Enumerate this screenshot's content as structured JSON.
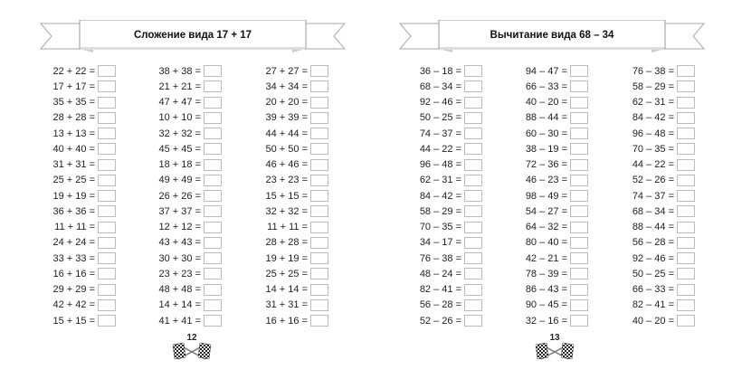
{
  "pages": [
    {
      "title": "Сложение вида  17 + 17",
      "page_number": "12",
      "columns": [
        [
          "22 + 22 =",
          "17 + 17 =",
          "35 + 35 =",
          "28 + 28 =",
          "13 + 13 =",
          "40 + 40 =",
          "31 + 31 =",
          "25 + 25 =",
          "19 + 19 =",
          "36 + 36 =",
          "11 + 11 =",
          "24 + 24 =",
          "33 + 33 =",
          "16 + 16 =",
          "29 + 29 =",
          "42 + 42 =",
          "15 + 15 ="
        ],
        [
          "38 + 38 =",
          "21 + 21 =",
          "47 + 47 =",
          "10 + 10 =",
          "32 + 32 =",
          "45 + 45 =",
          "18 + 18 =",
          "49 + 49 =",
          "26 + 26 =",
          "37 + 37 =",
          "12 + 12 =",
          "43 + 43 =",
          "30 + 30 =",
          "23 + 23 =",
          "48 + 48 =",
          "14 + 14 =",
          "41 + 41 ="
        ],
        [
          "27 + 27 =",
          "34 + 34 =",
          "20 + 20 =",
          "39 + 39 =",
          "44 + 44 =",
          "50 + 50 =",
          "46 + 46 =",
          "23 + 23 =",
          "15 + 15 =",
          "32 + 32 =",
          "11 + 11 =",
          "28 + 28 =",
          "19 + 19 =",
          "25 + 25 =",
          "14 + 14 =",
          "31 + 31 =",
          "16 + 16 ="
        ]
      ]
    },
    {
      "title": "Вычитание вида  68 – 34",
      "page_number": "13",
      "columns": [
        [
          "36 – 18 =",
          "68 – 34 =",
          "92 – 46 =",
          "50 – 25 =",
          "74 – 37 =",
          "44 – 22 =",
          "96 – 48 =",
          "62 – 31 =",
          "84 – 42 =",
          "58 – 29 =",
          "70 – 35 =",
          "34 – 17 =",
          "76 – 38 =",
          "48 – 24 =",
          "82 – 41 =",
          "56 – 28 =",
          "52 – 26 ="
        ],
        [
          "94 – 47 =",
          "66 – 33 =",
          "40 – 20 =",
          "88 – 44 =",
          "60 – 30 =",
          "38 – 19 =",
          "72 – 36 =",
          "46 – 23 =",
          "98 – 49 =",
          "54 – 27 =",
          "64 – 32 =",
          "80 – 40 =",
          "42 – 21 =",
          "78 – 39 =",
          "86 – 43 =",
          "90 – 45 =",
          "32 – 16 ="
        ],
        [
          "76 – 38 =",
          "58 – 29 =",
          "62 – 31 =",
          "84 – 42 =",
          "96 – 48 =",
          "70 – 35 =",
          "44 – 22 =",
          "52 – 26 =",
          "74 – 37 =",
          "68 – 34 =",
          "88 – 44 =",
          "56 – 28 =",
          "92 – 46 =",
          "50 – 25 =",
          "66 – 33 =",
          "82 – 41 =",
          "40 – 20 ="
        ]
      ]
    }
  ],
  "colors": {
    "banner_fill": "#ffffff",
    "banner_stroke": "#999999",
    "banner_shadow": "#d0d0d0",
    "answer_box_border": "#bbbbbb"
  },
  "icons": {
    "page_mark": "crossed-checkered-flags-icon"
  }
}
